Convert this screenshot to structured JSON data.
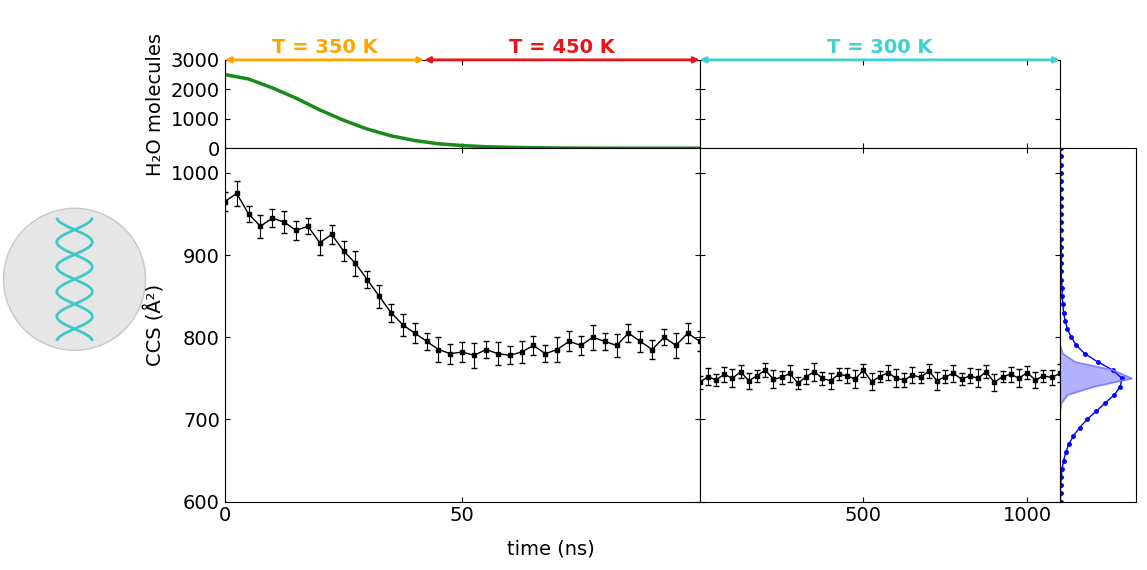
{
  "chart_data": [
    {
      "type": "line",
      "ylabel": "H₂O molecules",
      "x": [
        0,
        5,
        10,
        15,
        20,
        25,
        30,
        35,
        40,
        45,
        50,
        55,
        60,
        65,
        70,
        75,
        80,
        85,
        90,
        95,
        100
      ],
      "values": [
        2500,
        2350,
        2050,
        1700,
        1300,
        950,
        650,
        420,
        260,
        150,
        90,
        50,
        30,
        15,
        8,
        4,
        2,
        0,
        0,
        0,
        0
      ],
      "color": "#1a8a1a",
      "xlim": [
        0,
        100
      ],
      "xticks": [
        0,
        50
      ],
      "ylim": [
        0,
        3000
      ],
      "yticks": [
        0,
        1000,
        2000,
        3000
      ],
      "tick_labels": "y",
      "annotations": [
        {
          "text": "T = 350 K",
          "start": 0,
          "end": 42,
          "color": "#ffa500"
        },
        {
          "text": "T = 450 K",
          "start": 42,
          "end": 100,
          "color": "#e8141c"
        }
      ]
    },
    {
      "type": "line",
      "xlim": [
        0,
        1100
      ],
      "xticks": [
        500,
        1000
      ],
      "ylim": [
        0,
        3000
      ],
      "yticks": [
        0,
        1000,
        2000,
        3000
      ],
      "tick_labels": false,
      "annotations": [
        {
          "text": "T = 300 K",
          "start": 0,
          "end": 1100,
          "color": "#40d0d0"
        }
      ]
    },
    {
      "type": "line",
      "ylabel": "CCS (Å²)",
      "xlabel": "time (ns)",
      "x": [
        0,
        2.5,
        5,
        7.5,
        10,
        12.5,
        15,
        17.5,
        20,
        22.5,
        25,
        27.5,
        30,
        32.5,
        35,
        37.5,
        40,
        42.5,
        45,
        47.5,
        50,
        52.5,
        55,
        57.5,
        60,
        62.5,
        65,
        67.5,
        70,
        72.5,
        75,
        77.5,
        80,
        82.5,
        85,
        87.5,
        90,
        92.5,
        95,
        97.5,
        100
      ],
      "values": [
        965,
        975,
        950,
        935,
        945,
        940,
        930,
        935,
        915,
        925,
        905,
        890,
        870,
        850,
        830,
        815,
        805,
        795,
        785,
        780,
        782,
        778,
        785,
        780,
        778,
        782,
        790,
        780,
        785,
        795,
        790,
        800,
        795,
        790,
        805,
        795,
        785,
        800,
        790,
        805,
        795
      ],
      "errors": [
        12,
        15,
        10,
        14,
        11,
        13,
        12,
        10,
        15,
        12,
        12,
        15,
        10,
        14,
        11,
        13,
        12,
        10,
        15,
        12,
        12,
        15,
        10,
        14,
        11,
        13,
        12,
        10,
        15,
        12,
        12,
        15,
        10,
        14,
        11,
        13,
        12,
        10,
        15,
        12,
        12
      ],
      "color": "#000000",
      "marker": "square",
      "xlim": [
        0,
        100
      ],
      "xticks": [
        0,
        50
      ],
      "ylim": [
        600,
        1030
      ],
      "yticks": [
        600,
        700,
        800,
        900,
        1000
      ]
    },
    {
      "type": "line",
      "x": [
        0,
        25,
        50,
        75,
        100,
        125,
        150,
        175,
        200,
        225,
        250,
        275,
        300,
        325,
        350,
        375,
        400,
        425,
        450,
        475,
        500,
        525,
        550,
        575,
        600,
        625,
        650,
        675,
        700,
        725,
        750,
        775,
        800,
        825,
        850,
        875,
        900,
        925,
        950,
        975,
        1000,
        1025,
        1050,
        1075,
        1100
      ],
      "values": [
        745,
        752,
        748,
        755,
        750,
        758,
        747,
        753,
        760,
        749,
        751,
        756,
        744,
        752,
        758,
        750,
        747,
        755,
        753,
        749,
        760,
        746,
        752,
        757,
        750,
        748,
        754,
        751,
        759,
        747,
        752,
        756,
        749,
        753,
        750,
        758,
        745,
        752,
        755,
        750,
        757,
        748,
        753,
        751,
        756
      ],
      "errors": [
        8,
        10,
        7,
        9,
        11,
        8,
        10,
        7,
        9,
        11,
        8,
        10,
        7,
        9,
        11,
        8,
        10,
        7,
        9,
        11,
        8,
        10,
        7,
        9,
        11,
        8,
        10,
        7,
        9,
        11,
        8,
        10,
        7,
        9,
        11,
        8,
        10,
        7,
        9,
        11,
        8,
        10,
        7,
        9,
        11
      ],
      "color": "#000000",
      "marker": "square",
      "xlim": [
        0,
        1100
      ],
      "xticks": [
        500,
        1000
      ],
      "ylim": [
        600,
        1030
      ],
      "yticks": [
        600,
        700,
        800,
        900,
        1000
      ],
      "tick_labels": "x"
    },
    {
      "type": "line",
      "orientation": "horizontal",
      "ccs": [
        600,
        610,
        620,
        630,
        640,
        650,
        660,
        670,
        680,
        690,
        700,
        710,
        720,
        730,
        740,
        750,
        760,
        770,
        780,
        790,
        800,
        810,
        820,
        830,
        840,
        850,
        860,
        870,
        880,
        890,
        900,
        910,
        920,
        930,
        940,
        950,
        960,
        970,
        980,
        990,
        1000,
        1010,
        1020,
        1030
      ],
      "series": [
        {
          "color": "#0000ff",
          "marker": "circle",
          "values": [
            0.01,
            0.01,
            0.01,
            0.02,
            0.03,
            0.05,
            0.08,
            0.12,
            0.18,
            0.26,
            0.36,
            0.48,
            0.6,
            0.72,
            0.8,
            0.82,
            0.7,
            0.5,
            0.33,
            0.22,
            0.15,
            0.1,
            0.07,
            0.05,
            0.04,
            0.03,
            0.03,
            0.02,
            0.02,
            0.02,
            0.02,
            0.02,
            0.01,
            0.01,
            0.01,
            0.01,
            0.01,
            0.01,
            0.01,
            0.01,
            0.01,
            0.01,
            0.01,
            0.01
          ]
        },
        {
          "color": "#7f7fff",
          "type": "area",
          "values": [
            0,
            0,
            0,
            0,
            0,
            0,
            0,
            0,
            0,
            0,
            0,
            0,
            0.02,
            0.1,
            0.45,
            0.95,
            0.7,
            0.2,
            0.04,
            0,
            0,
            0,
            0,
            0,
            0,
            0,
            0,
            0,
            0,
            0,
            0,
            0,
            0,
            0,
            0,
            0,
            0,
            0,
            0,
            0,
            0,
            0,
            0,
            0
          ]
        }
      ],
      "xlim": [
        0,
        1
      ],
      "ylim": [
        600,
        1030
      ],
      "tick_labels": false
    }
  ]
}
